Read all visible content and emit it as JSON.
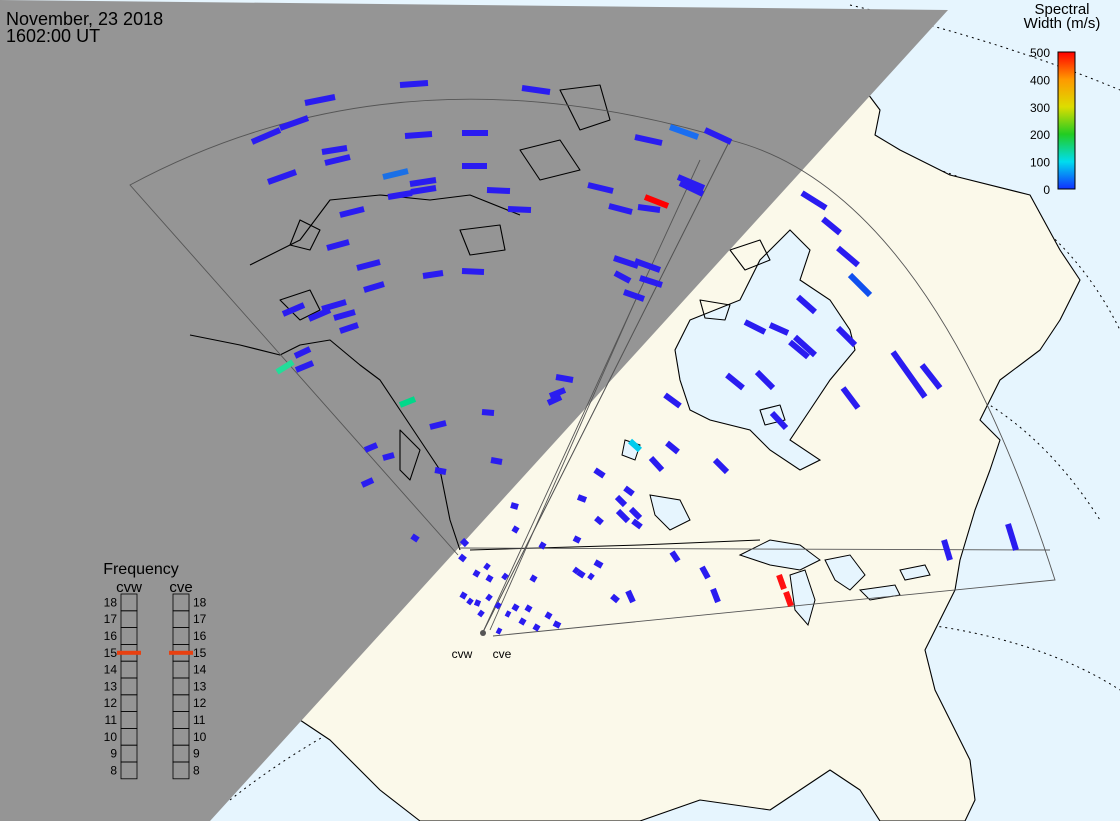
{
  "header": {
    "date": "November, 23 2018",
    "time": "1602:00 UT"
  },
  "colorbar": {
    "title_line1": "Spectral",
    "title_line2": "Width (m/s)",
    "ticks": [
      "500",
      "400",
      "300",
      "200",
      "100",
      "0"
    ],
    "stops": [
      "#ff0000",
      "#ff9900",
      "#dddd00",
      "#22cc22",
      "#00ddee",
      "#1030ff"
    ]
  },
  "frequency": {
    "title": "Frequency",
    "radar_left": "cvw",
    "radar_right": "cve",
    "levels": [
      "18",
      "17",
      "16",
      "15",
      "14",
      "13",
      "12",
      "11",
      "10",
      "9",
      "8"
    ],
    "left_value": 15,
    "right_value": 15,
    "marker_color": "#e84010"
  },
  "radars": {
    "left_label": "cvw",
    "right_label": "cve"
  },
  "colors": {
    "night": "#959595",
    "land": "#fbf9ea",
    "ocean": "#e6f5fe",
    "low_width": "#2a1cf0"
  }
}
